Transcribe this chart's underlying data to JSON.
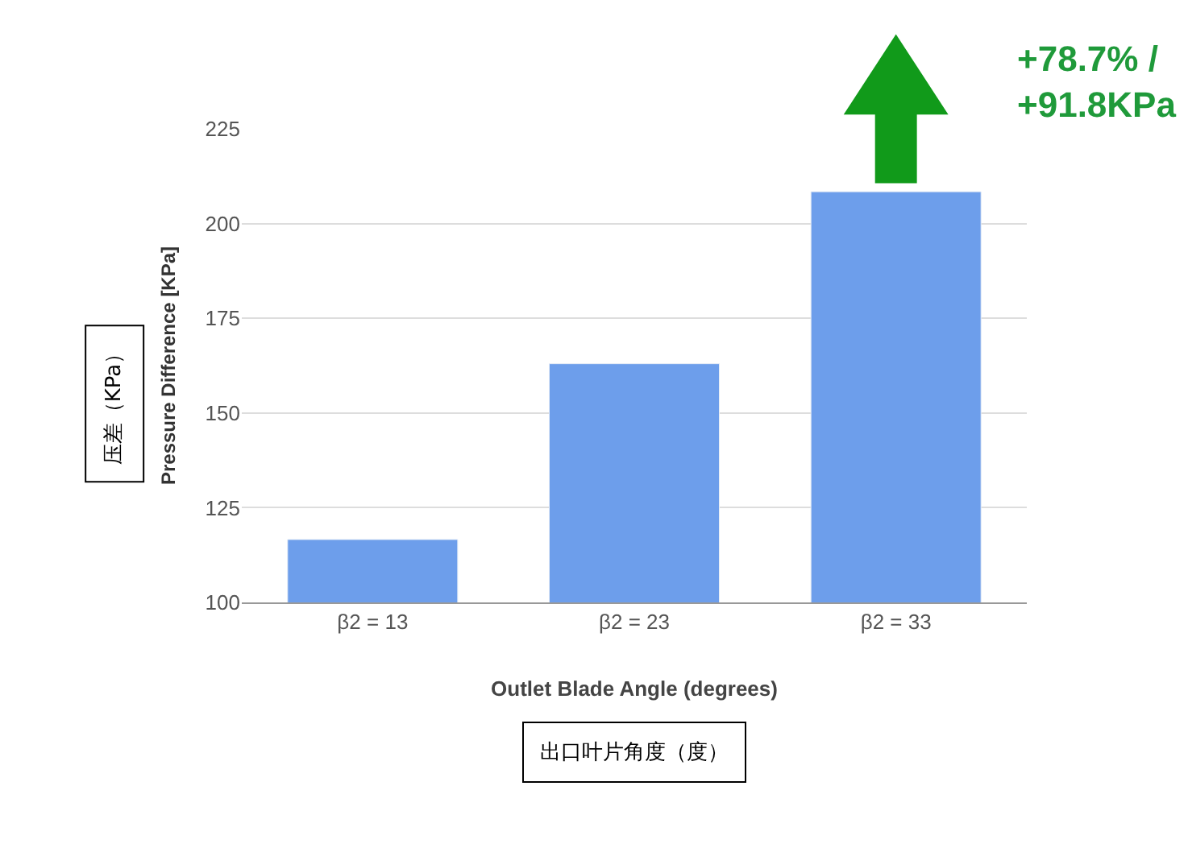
{
  "chart_data": {
    "type": "bar",
    "xlabel": "Outlet Blade Angle (degrees)",
    "ylabel": "Pressure Difference [KPa]",
    "categories": [
      "β2 = 13",
      "β2 = 23",
      "β2 = 33"
    ],
    "series": [
      {
        "color": "#6d9eeb",
        "values": [
          116.6,
          163,
          208.4
        ]
      }
    ],
    "ylim": [
      100,
      225
    ],
    "yticks": [
      100,
      125,
      150,
      175,
      200,
      225
    ],
    "grid": "y",
    "annotations": [
      "+78.7% /\n+91.8KPa",
      "压差（KPa）",
      "出口叶片角度（度）"
    ]
  }
}
